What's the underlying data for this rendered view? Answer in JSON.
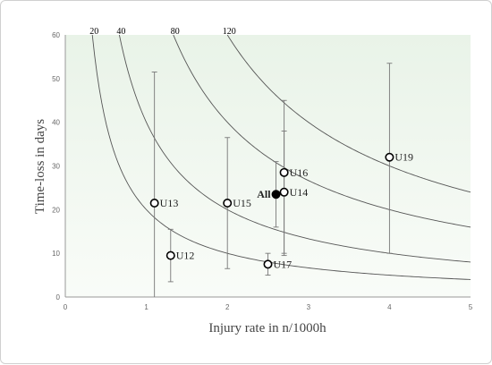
{
  "chart_data": {
    "type": "scatter",
    "xlabel": "Injury rate in n/1000h",
    "ylabel": "Time-loss in days",
    "xlim": [
      0,
      5
    ],
    "ylim": [
      0,
      60
    ],
    "x_ticks": [
      0,
      1,
      2,
      3,
      4,
      5
    ],
    "y_ticks": [
      0,
      10,
      20,
      30,
      40,
      50,
      60
    ],
    "grid": false,
    "background": "#f1f8f0",
    "points": [
      {
        "label": "U12",
        "x": 1.3,
        "y": 9.5,
        "err_low": 3.5,
        "err_high": 15.5,
        "filled": false
      },
      {
        "label": "U13",
        "x": 1.1,
        "y": 21.5,
        "err_low": 0,
        "err_high": 51.5,
        "filled": false
      },
      {
        "label": "U15",
        "x": 2.0,
        "y": 21.5,
        "err_low": 6.5,
        "err_high": 36.5,
        "filled": false
      },
      {
        "label": "U17",
        "x": 2.5,
        "y": 7.5,
        "err_low": 5.0,
        "err_high": 10.0,
        "filled": false
      },
      {
        "label": "All",
        "x": 2.6,
        "y": 23.5,
        "err_low": 16.0,
        "err_high": 31.0,
        "filled": true
      },
      {
        "label": "U14",
        "x": 2.7,
        "y": 24.0,
        "err_low": 10.0,
        "err_high": 38.0,
        "filled": false
      },
      {
        "label": "U16",
        "x": 2.7,
        "y": 28.5,
        "err_low": 9.5,
        "err_high": 45.0,
        "filled": false
      },
      {
        "label": "U19",
        "x": 4.0,
        "y": 32.0,
        "err_low": 10.0,
        "err_high": 53.5,
        "filled": false
      }
    ],
    "curves": [
      {
        "label": "20",
        "product": 20
      },
      {
        "label": "40",
        "product": 40
      },
      {
        "label": "80",
        "product": 80
      },
      {
        "label": "120",
        "product": 120
      }
    ]
  }
}
